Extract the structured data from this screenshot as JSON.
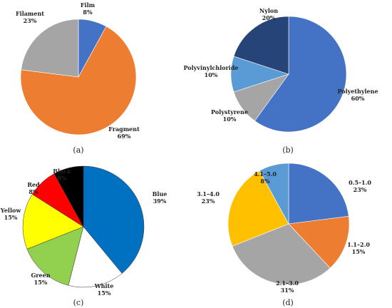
{
  "chart_data": [
    {
      "type": "pie",
      "panel_label": "(a)",
      "slices": [
        {
          "label": "Film",
          "percent_label": "8%",
          "value": 8,
          "color": "#4472C4"
        },
        {
          "label": "Fragment",
          "percent_label": "69%",
          "value": 69,
          "color": "#ED7D31"
        },
        {
          "label": "Filament",
          "percent_label": "23%",
          "value": 23,
          "color": "#A5A5A5"
        }
      ]
    },
    {
      "type": "pie",
      "panel_label": "(b)",
      "slices": [
        {
          "label": "Polyethylene",
          "percent_label": "60%",
          "value": 60,
          "color": "#4472C4"
        },
        {
          "label": "Polystyrene",
          "percent_label": "10%",
          "value": 10,
          "color": "#A5A5A5"
        },
        {
          "label": "Polyvinylchloride",
          "percent_label": "10%",
          "value": 10,
          "color": "#5B9BD5"
        },
        {
          "label": "Nylon",
          "percent_label": "20%",
          "value": 20,
          "color": "#264478"
        }
      ]
    },
    {
      "type": "pie",
      "panel_label": "(c)",
      "slices": [
        {
          "label": "Blue",
          "percent_label": "39%",
          "value": 39,
          "color": "#0070C0"
        },
        {
          "label": "White",
          "percent_label": "15%",
          "value": 15,
          "color": "#FFFFFF"
        },
        {
          "label": "Green",
          "percent_label": "15%",
          "value": 15,
          "color": "#92D050"
        },
        {
          "label": "Yellow",
          "percent_label": "15%",
          "value": 15,
          "color": "#FFFF00"
        },
        {
          "label": "Red",
          "percent_label": "8%",
          "value": 8,
          "color": "#FF0000"
        },
        {
          "label": "Black",
          "percent_label": "8%",
          "value": 8,
          "color": "#000000"
        }
      ]
    },
    {
      "type": "pie",
      "panel_label": "(d)",
      "slices": [
        {
          "label": "0.5–1.0",
          "percent_label": "23%",
          "value": 23,
          "color": "#4472C4"
        },
        {
          "label": "1.1–2.0",
          "percent_label": "15%",
          "value": 15,
          "color": "#ED7D31"
        },
        {
          "label": "2.1–3.0",
          "percent_label": "31%",
          "value": 31,
          "color": "#A5A5A5"
        },
        {
          "label": "3.1–4.0",
          "percent_label": "23%",
          "value": 23,
          "color": "#FFC000"
        },
        {
          "label": "4.1–5.0",
          "percent_label": "8%",
          "value": 8,
          "color": "#5B9BD5"
        }
      ]
    }
  ]
}
